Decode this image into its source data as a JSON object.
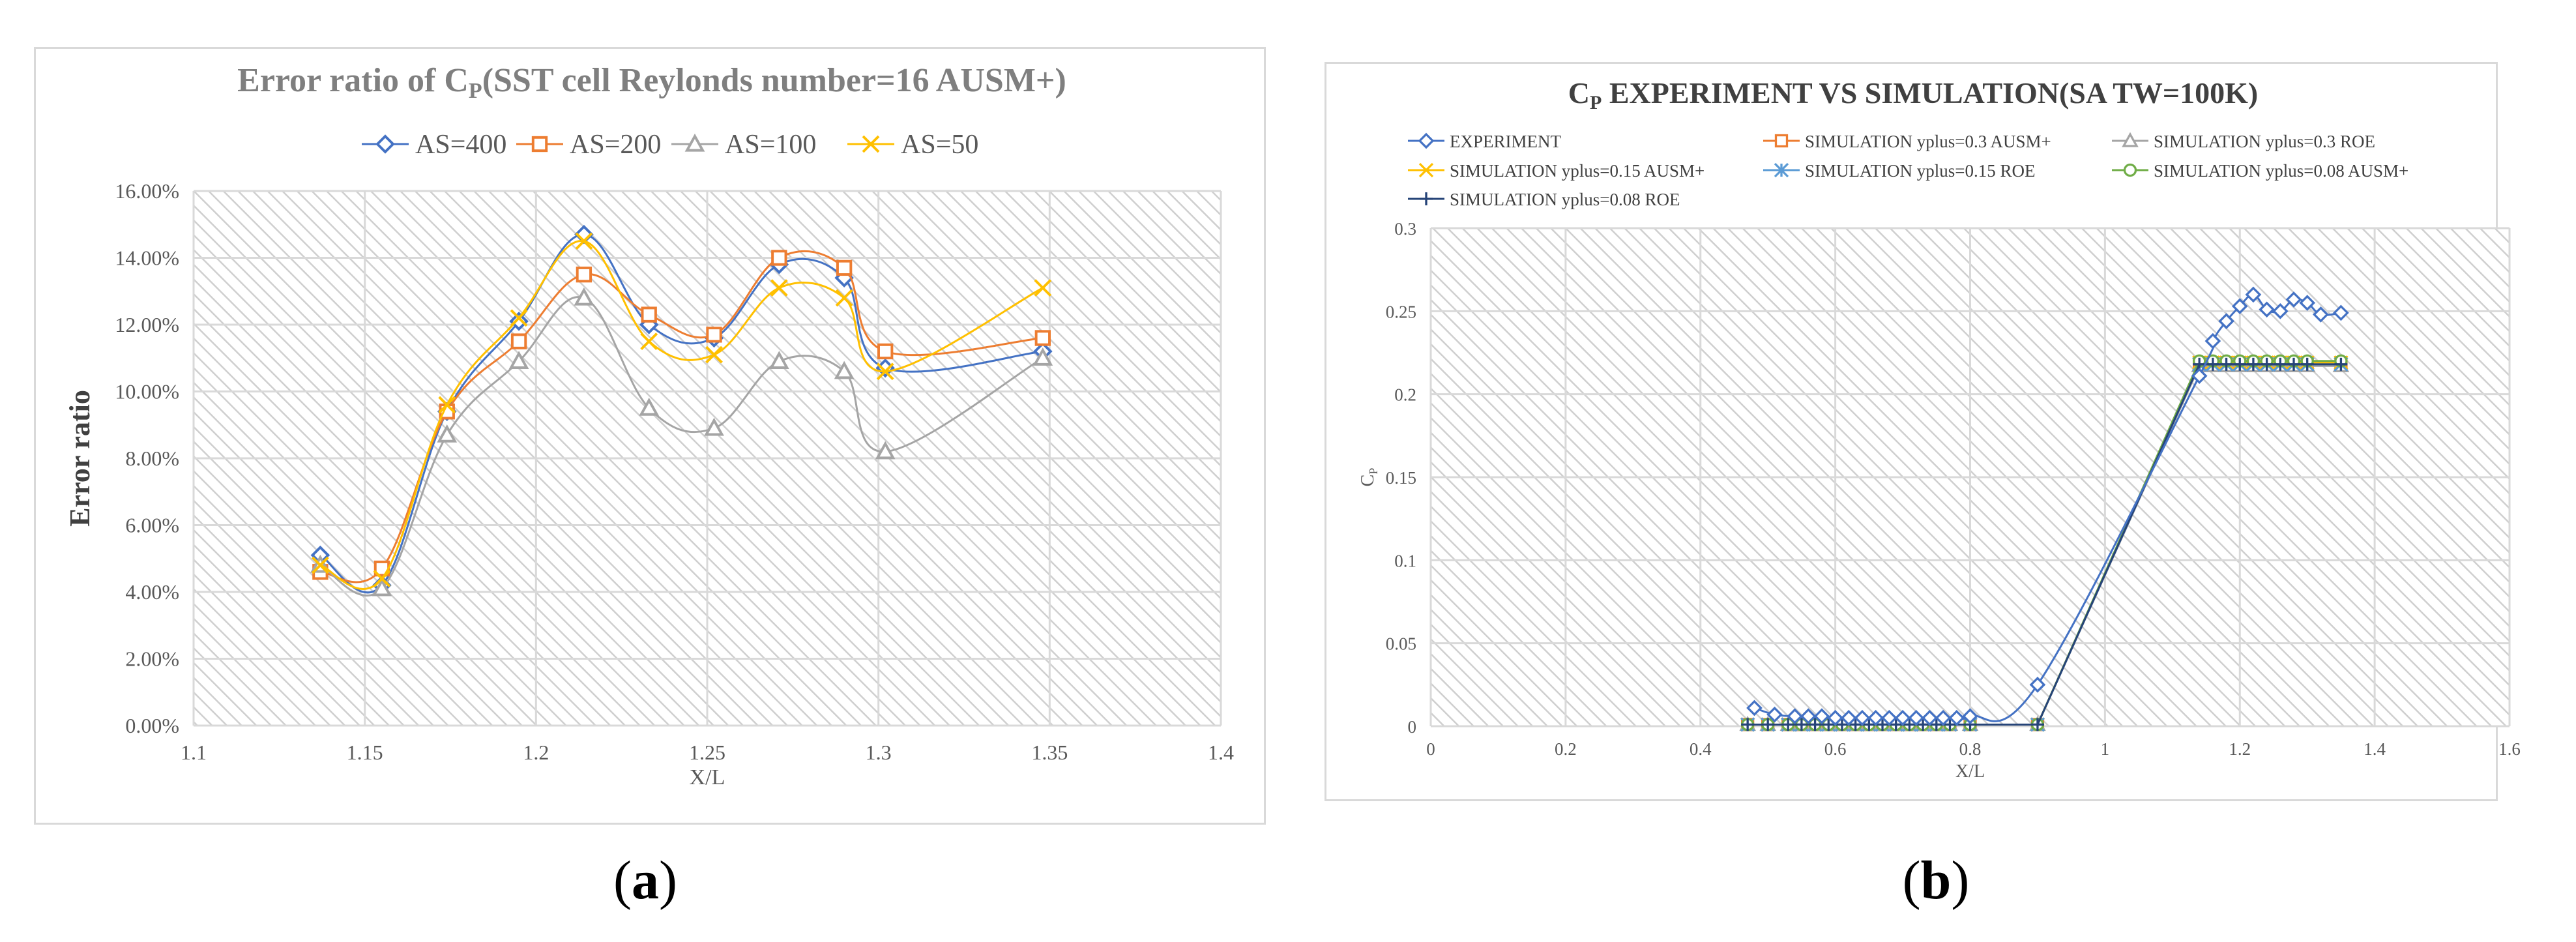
{
  "colors": {
    "blue": "#4472C4",
    "orange": "#ED7D31",
    "gray": "#A5A5A5",
    "yellow": "#FFC000",
    "lightblue": "#5B9BD5",
    "green": "#70AD47",
    "darknavy": "#264478",
    "grid": "#d9d9d9",
    "hatch": "#cfcfcf",
    "title_gray": "#7f7f7f",
    "title_dark": "#404040"
  },
  "captions": {
    "a": "a",
    "b": "b"
  },
  "chart_data": [
    {
      "type": "line",
      "title_main": "Error ratio of C",
      "title_sub": "P",
      "title_rest": "(SST cell Reylonds number=16 AUSM+)",
      "xlabel": "X/L",
      "ylabel": "Error ratio",
      "xlim": [
        1.1,
        1.4
      ],
      "ylim": [
        0.0,
        0.16
      ],
      "xticks": [
        1.1,
        1.15,
        1.2,
        1.25,
        1.3,
        1.35,
        1.4
      ],
      "xtick_labels": [
        "1.1",
        "1.15",
        "1.2",
        "1.25",
        "1.3",
        "1.35",
        "1.4"
      ],
      "yticks": [
        0.0,
        0.02,
        0.04,
        0.06,
        0.08,
        0.1,
        0.12,
        0.14,
        0.16
      ],
      "ytick_labels": [
        "0.00%",
        "2.00%",
        "4.00%",
        "6.00%",
        "8.00%",
        "10.00%",
        "12.00%",
        "14.00%",
        "16.00%"
      ],
      "legend_position": "top",
      "x": [
        1.137,
        1.155,
        1.174,
        1.195,
        1.214,
        1.233,
        1.252,
        1.271,
        1.29,
        1.302,
        1.348
      ],
      "series": [
        {
          "name": "AS=400",
          "marker": "diamond",
          "color": "#4472C4",
          "values": [
            0.051,
            0.042,
            0.094,
            0.121,
            0.147,
            0.12,
            0.116,
            0.138,
            0.134,
            0.107,
            0.112
          ]
        },
        {
          "name": "AS=200",
          "marker": "square",
          "color": "#ED7D31",
          "values": [
            0.046,
            0.047,
            0.094,
            0.115,
            0.135,
            0.123,
            0.117,
            0.14,
            0.137,
            0.112,
            0.116
          ]
        },
        {
          "name": "AS=100",
          "marker": "triangle",
          "color": "#A5A5A5",
          "values": [
            0.048,
            0.041,
            0.087,
            0.109,
            0.128,
            0.095,
            0.089,
            0.109,
            0.106,
            0.082,
            0.11
          ]
        },
        {
          "name": "AS=50",
          "marker": "x",
          "color": "#FFC000",
          "values": [
            0.048,
            0.044,
            0.096,
            0.122,
            0.145,
            0.115,
            0.111,
            0.131,
            0.128,
            0.106,
            0.131
          ]
        }
      ]
    },
    {
      "type": "line",
      "title_main": "C",
      "title_sub": "P",
      "title_rest": " EXPERIMENT VS SIMULATION(SA TW=100K)",
      "xlabel": "X/L",
      "ylabel_main": "C",
      "ylabel_sub": "P",
      "xlim": [
        0,
        1.6
      ],
      "ylim": [
        0,
        0.3
      ],
      "xticks": [
        0,
        0.2,
        0.4,
        0.6,
        0.8,
        1.0,
        1.2,
        1.4,
        1.6
      ],
      "xtick_labels": [
        "0",
        "0.2",
        "0.4",
        "0.6",
        "0.8",
        "1",
        "1.2",
        "1.4",
        "1.6"
      ],
      "yticks": [
        0,
        0.05,
        0.1,
        0.15,
        0.2,
        0.25,
        0.3
      ],
      "ytick_labels": [
        "0",
        "0.05",
        "0.1",
        "0.15",
        "0.2",
        "0.25",
        "0.3"
      ],
      "legend_position": "top",
      "series": [
        {
          "name": "EXPERIMENT",
          "marker": "diamond",
          "color": "#4472C4",
          "x": [
            0.48,
            0.51,
            0.54,
            0.56,
            0.58,
            0.6,
            0.62,
            0.64,
            0.66,
            0.68,
            0.7,
            0.72,
            0.74,
            0.76,
            0.78,
            0.8,
            0.9,
            1.14,
            1.16,
            1.18,
            1.2,
            1.22,
            1.24,
            1.26,
            1.28,
            1.3,
            1.32,
            1.35
          ],
          "y": [
            0.011,
            0.007,
            0.006,
            0.006,
            0.006,
            0.005,
            0.005,
            0.005,
            0.005,
            0.005,
            0.005,
            0.005,
            0.005,
            0.005,
            0.005,
            0.006,
            0.025,
            0.211,
            0.232,
            0.244,
            0.253,
            0.26,
            0.251,
            0.25,
            0.257,
            0.255,
            0.248,
            0.249
          ]
        },
        {
          "name": "SIMULATION yplus=0.3 AUSM+",
          "marker": "square",
          "color": "#ED7D31",
          "x": [
            0.47,
            0.5,
            0.53,
            0.55,
            0.57,
            0.59,
            0.61,
            0.63,
            0.65,
            0.67,
            0.69,
            0.71,
            0.73,
            0.75,
            0.77,
            0.8,
            0.9,
            1.14,
            1.16,
            1.18,
            1.2,
            1.22,
            1.24,
            1.26,
            1.28,
            1.3,
            1.35
          ],
          "y": [
            0.001,
            0.001,
            0.001,
            0.001,
            0.001,
            0.001,
            0.001,
            0.001,
            0.001,
            0.001,
            0.001,
            0.001,
            0.001,
            0.001,
            0.001,
            0.001,
            0.001,
            0.219,
            0.219,
            0.219,
            0.219,
            0.219,
            0.219,
            0.219,
            0.219,
            0.219,
            0.219
          ]
        },
        {
          "name": "SIMULATION yplus=0.3 ROE",
          "marker": "triangle",
          "color": "#A5A5A5",
          "x": [
            0.47,
            0.5,
            0.53,
            0.55,
            0.57,
            0.59,
            0.61,
            0.63,
            0.65,
            0.67,
            0.69,
            0.71,
            0.73,
            0.75,
            0.77,
            0.8,
            0.9,
            1.14,
            1.16,
            1.18,
            1.2,
            1.22,
            1.24,
            1.26,
            1.28,
            1.3,
            1.35
          ],
          "y": [
            0.001,
            0.001,
            0.001,
            0.001,
            0.001,
            0.001,
            0.001,
            0.001,
            0.001,
            0.001,
            0.001,
            0.001,
            0.001,
            0.001,
            0.001,
            0.001,
            0.001,
            0.217,
            0.217,
            0.217,
            0.217,
            0.217,
            0.217,
            0.217,
            0.217,
            0.217,
            0.217
          ]
        },
        {
          "name": "SIMULATION yplus=0.15 AUSM+",
          "marker": "x",
          "color": "#FFC000",
          "x": [
            0.47,
            0.5,
            0.53,
            0.55,
            0.57,
            0.59,
            0.61,
            0.63,
            0.65,
            0.67,
            0.69,
            0.71,
            0.73,
            0.75,
            0.77,
            0.8,
            0.9,
            1.14,
            1.16,
            1.18,
            1.2,
            1.22,
            1.24,
            1.26,
            1.28,
            1.3,
            1.35
          ],
          "y": [
            0.001,
            0.001,
            0.001,
            0.001,
            0.001,
            0.001,
            0.001,
            0.001,
            0.001,
            0.001,
            0.001,
            0.001,
            0.001,
            0.001,
            0.001,
            0.001,
            0.001,
            0.219,
            0.219,
            0.219,
            0.219,
            0.219,
            0.219,
            0.219,
            0.219,
            0.219,
            0.219
          ]
        },
        {
          "name": "SIMULATION yplus=0.15 ROE",
          "marker": "asterisk",
          "color": "#5B9BD5",
          "x": [
            0.47,
            0.5,
            0.53,
            0.55,
            0.57,
            0.59,
            0.61,
            0.63,
            0.65,
            0.67,
            0.69,
            0.71,
            0.73,
            0.75,
            0.77,
            0.8,
            0.9,
            1.14,
            1.16,
            1.18,
            1.2,
            1.22,
            1.24,
            1.26,
            1.28,
            1.3,
            1.35
          ],
          "y": [
            0.001,
            0.001,
            0.001,
            0.001,
            0.001,
            0.001,
            0.001,
            0.001,
            0.001,
            0.001,
            0.001,
            0.001,
            0.001,
            0.001,
            0.001,
            0.001,
            0.001,
            0.218,
            0.218,
            0.218,
            0.218,
            0.218,
            0.218,
            0.218,
            0.218,
            0.218,
            0.218
          ]
        },
        {
          "name": "SIMULATION yplus=0.08 AUSM+",
          "marker": "circle",
          "color": "#70AD47",
          "x": [
            0.47,
            0.5,
            0.53,
            0.55,
            0.57,
            0.59,
            0.61,
            0.63,
            0.65,
            0.67,
            0.69,
            0.71,
            0.73,
            0.75,
            0.77,
            0.8,
            0.9,
            1.14,
            1.16,
            1.18,
            1.2,
            1.22,
            1.24,
            1.26,
            1.28,
            1.3,
            1.35
          ],
          "y": [
            0.001,
            0.001,
            0.001,
            0.001,
            0.001,
            0.001,
            0.001,
            0.001,
            0.001,
            0.001,
            0.001,
            0.001,
            0.001,
            0.001,
            0.001,
            0.001,
            0.001,
            0.22,
            0.22,
            0.22,
            0.22,
            0.22,
            0.22,
            0.22,
            0.22,
            0.22,
            0.22
          ]
        },
        {
          "name": "SIMULATION yplus=0.08 ROE",
          "marker": "plus",
          "color": "#264478",
          "x": [
            0.47,
            0.5,
            0.53,
            0.55,
            0.57,
            0.59,
            0.61,
            0.63,
            0.65,
            0.67,
            0.69,
            0.71,
            0.73,
            0.75,
            0.77,
            0.8,
            0.9,
            1.14,
            1.16,
            1.18,
            1.2,
            1.22,
            1.24,
            1.26,
            1.28,
            1.3,
            1.35
          ],
          "y": [
            0.001,
            0.001,
            0.001,
            0.001,
            0.001,
            0.001,
            0.001,
            0.001,
            0.001,
            0.001,
            0.001,
            0.001,
            0.001,
            0.001,
            0.001,
            0.001,
            0.001,
            0.218,
            0.218,
            0.218,
            0.218,
            0.218,
            0.218,
            0.218,
            0.218,
            0.218,
            0.218
          ]
        }
      ]
    }
  ]
}
